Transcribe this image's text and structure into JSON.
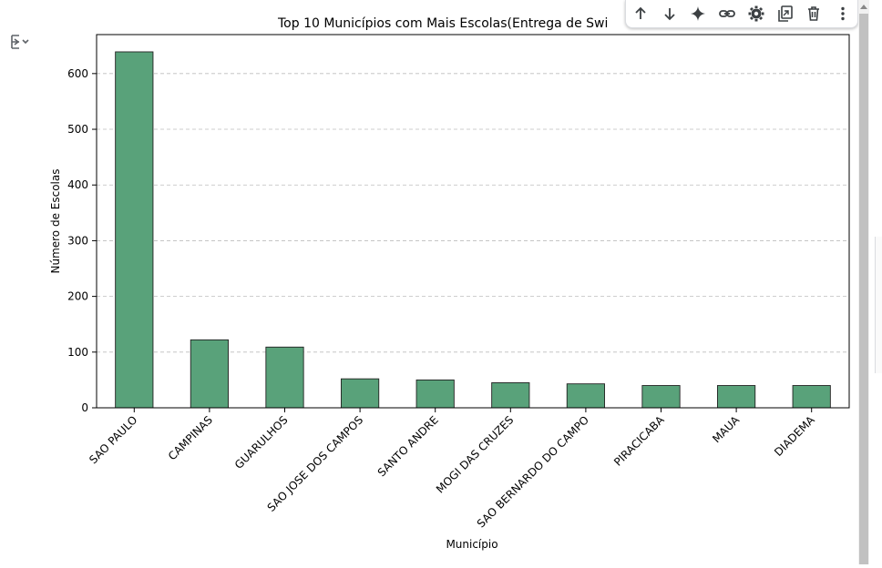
{
  "toolbar": {
    "items": [
      {
        "name": "move-up-button",
        "icon": "arrow-up-icon"
      },
      {
        "name": "move-down-button",
        "icon": "arrow-down-icon"
      },
      {
        "name": "ai-sparkle-button",
        "icon": "sparkle-icon"
      },
      {
        "name": "link-button",
        "icon": "link-icon"
      },
      {
        "name": "settings-button",
        "icon": "gear-icon"
      },
      {
        "name": "mirror-cell-button",
        "icon": "mirror-icon"
      },
      {
        "name": "delete-button",
        "icon": "trash-icon"
      },
      {
        "name": "more-button",
        "icon": "more-vert-icon"
      }
    ]
  },
  "colors": {
    "bar_fill": "#59a27a",
    "bar_stroke": "#222222",
    "grid": "#bdbdbd",
    "text": "#000000",
    "toolbar_icon": "#3c4043"
  },
  "chart_data": {
    "type": "bar",
    "title": "Top 10 Municípios com Mais Escolas(Entrega de Swi",
    "xlabel": "Município",
    "ylabel": "Número de Escolas",
    "categories": [
      "SAO PAULO",
      "CAMPINAS",
      "GUARULHOS",
      "SAO JOSE DOS CAMPOS",
      "SANTO ANDRE",
      "MOGI DAS CRUZES",
      "SAO BERNARDO DO CAMPO",
      "PIRACICABA",
      "MAUA",
      "DIADEMA"
    ],
    "values": [
      639,
      122,
      109,
      52,
      50,
      45,
      43,
      40,
      40,
      40
    ],
    "ylim": [
      0,
      670
    ],
    "yticks": [
      0,
      100,
      200,
      300,
      400,
      500,
      600
    ],
    "grid": true,
    "grid_axis": "y",
    "grid_style": "dashed",
    "legend": "none"
  }
}
